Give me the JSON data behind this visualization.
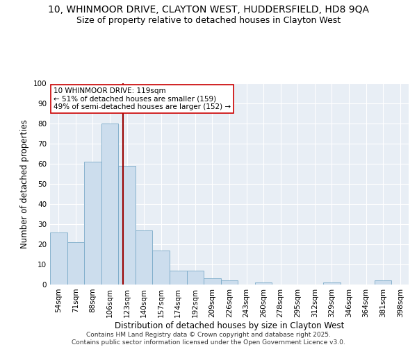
{
  "title_line1": "10, WHINMOOR DRIVE, CLAYTON WEST, HUDDERSFIELD, HD8 9QA",
  "title_line2": "Size of property relative to detached houses in Clayton West",
  "xlabel": "Distribution of detached houses by size in Clayton West",
  "ylabel": "Number of detached properties",
  "categories": [
    "54sqm",
    "71sqm",
    "88sqm",
    "106sqm",
    "123sqm",
    "140sqm",
    "157sqm",
    "174sqm",
    "192sqm",
    "209sqm",
    "226sqm",
    "243sqm",
    "260sqm",
    "278sqm",
    "295sqm",
    "312sqm",
    "329sqm",
    "346sqm",
    "364sqm",
    "381sqm",
    "398sqm"
  ],
  "values": [
    26,
    21,
    61,
    80,
    59,
    27,
    17,
    7,
    7,
    3,
    2,
    0,
    1,
    0,
    0,
    0,
    1,
    0,
    0,
    2,
    0
  ],
  "bar_color": "#ccdded",
  "bar_edge_color": "#7aaac8",
  "vline_color": "#990000",
  "vline_pos": 3.78,
  "annotation_line1": "10 WHINMOOR DRIVE: 119sqm",
  "annotation_line2": "← 51% of detached houses are smaller (159)",
  "annotation_line3": "49% of semi-detached houses are larger (152) →",
  "annotation_box_facecolor": "#ffffff",
  "annotation_box_edgecolor": "#cc0000",
  "ylim": [
    0,
    100
  ],
  "yticks": [
    0,
    10,
    20,
    30,
    40,
    50,
    60,
    70,
    80,
    90,
    100
  ],
  "bg_color": "#ffffff",
  "plot_bg_color": "#e8eef5",
  "grid_color": "#ffffff",
  "footer_line1": "Contains HM Land Registry data © Crown copyright and database right 2025.",
  "footer_line2": "Contains public sector information licensed under the Open Government Licence v3.0.",
  "title1_fontsize": 10,
  "title2_fontsize": 9,
  "axis_label_fontsize": 8.5,
  "tick_fontsize": 7.5,
  "annotation_fontsize": 7.5,
  "footer_fontsize": 6.5,
  "ylabel_fontsize": 8.5
}
